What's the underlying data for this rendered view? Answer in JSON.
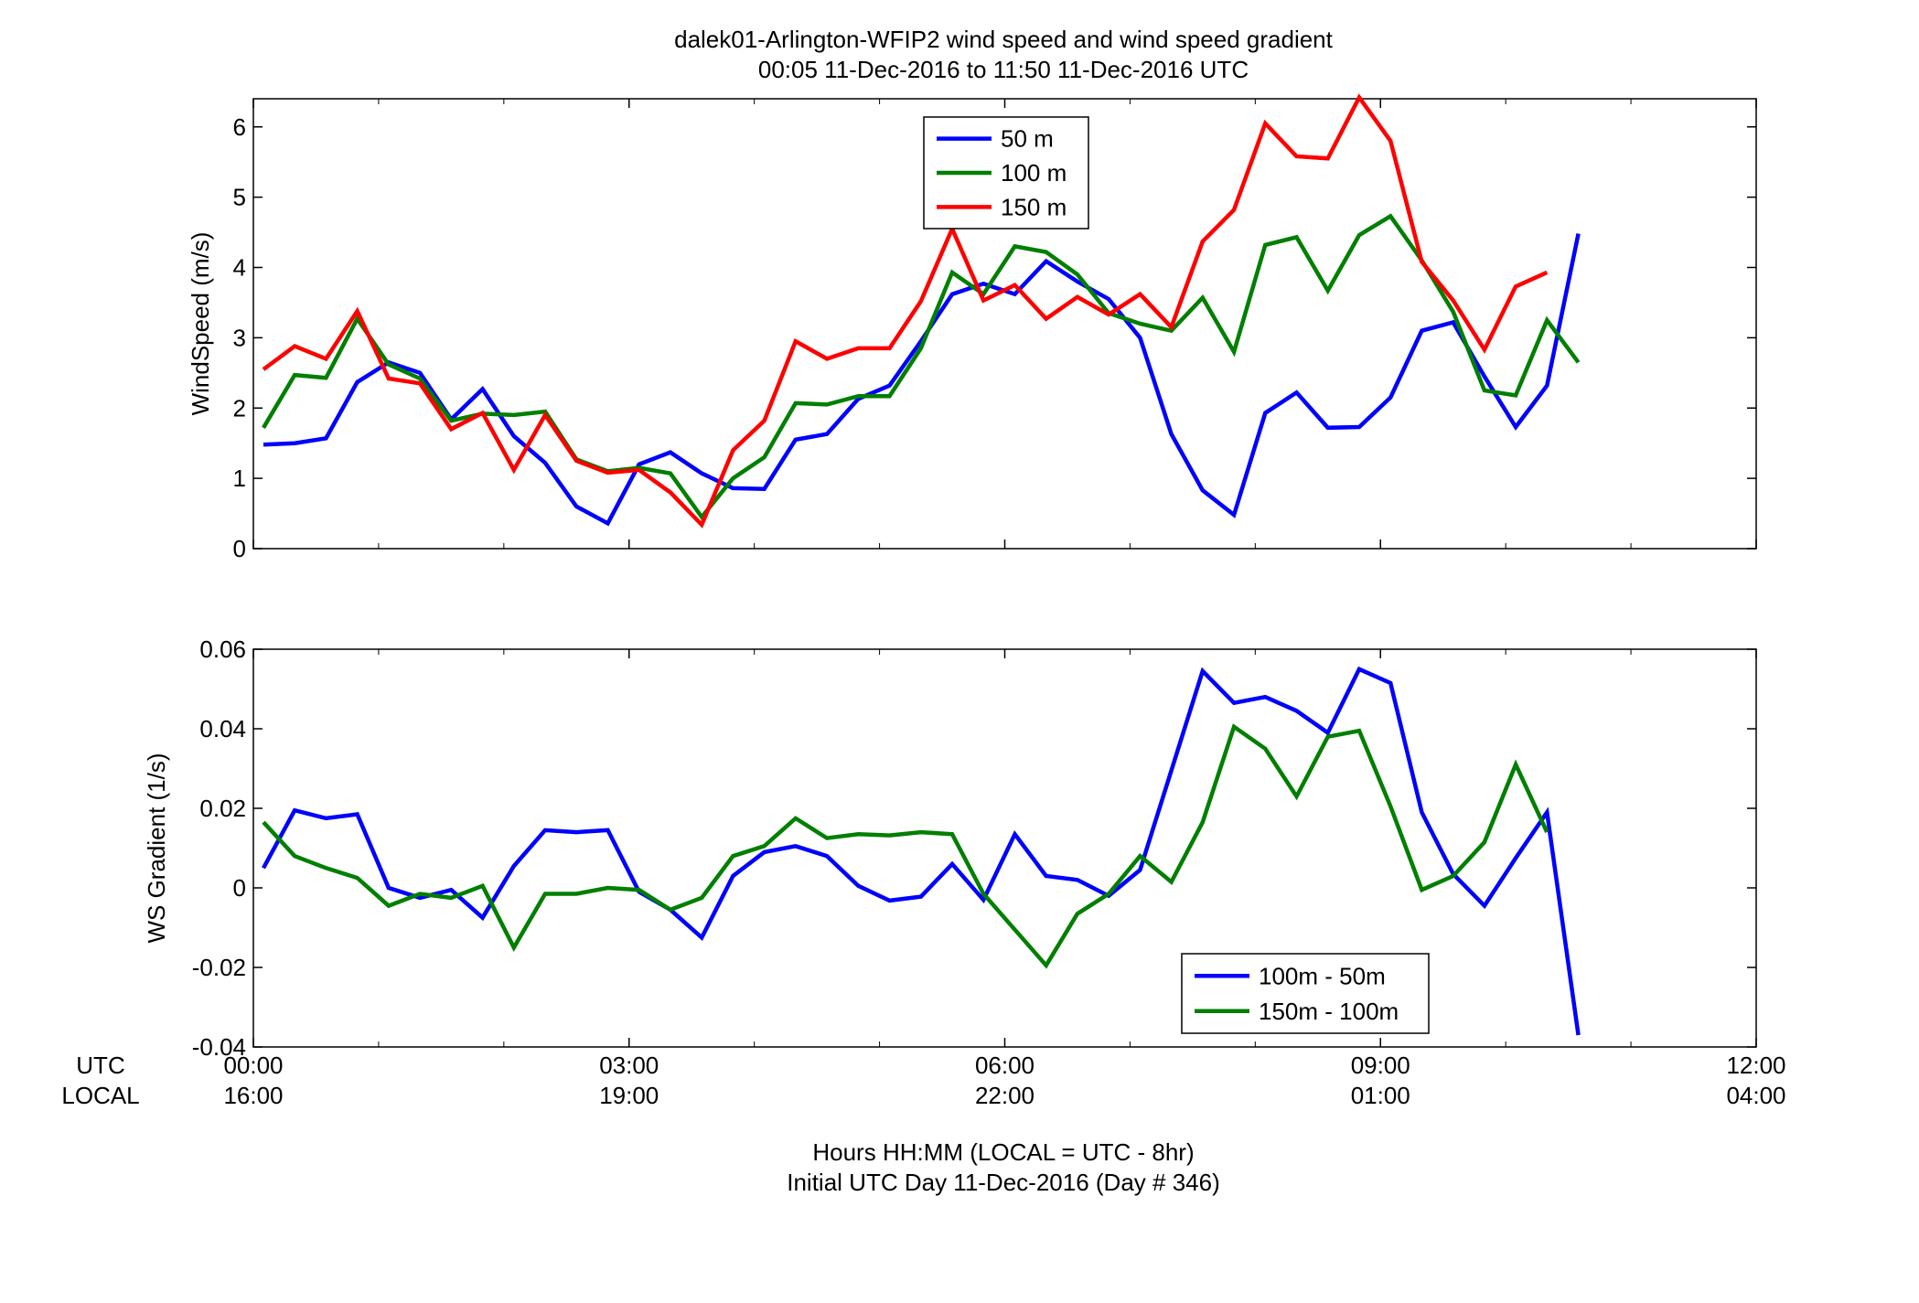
{
  "title": {
    "line1": "dalek01-Arlington-WFIP2  wind speed and wind speed gradient",
    "line2": "00:05 11-Dec-2016 to 11:50 11-Dec-2016  UTC"
  },
  "xaxis": {
    "row_label_utc": "UTC",
    "row_label_local": "LOCAL",
    "ticks_utc": [
      "00:00",
      "03:00",
      "06:00",
      "09:00",
      "12:00"
    ],
    "ticks_local": [
      "16:00",
      "19:00",
      "22:00",
      "01:00",
      "04:00"
    ],
    "label_line1": "Hours HH:MM  (LOCAL = UTC - 8hr)",
    "label_line2": "Initial UTC Day 11-Dec-2016 (Day # 346)"
  },
  "chart_data": [
    {
      "type": "line",
      "ylabel": "WindSpeed (m/s)",
      "xlim": [
        0,
        12
      ],
      "ylim": [
        0,
        6.4
      ],
      "yticks": [
        "0",
        "1",
        "2",
        "3",
        "4",
        "5",
        "6"
      ],
      "ytick_values": [
        0,
        1,
        2,
        3,
        4,
        5,
        6
      ],
      "legend_position": "top-center",
      "series": [
        {
          "name": "50 m",
          "color": "#0000ff",
          "x": [
            0.08,
            0.33,
            0.58,
            0.83,
            1.08,
            1.33,
            1.58,
            1.83,
            2.08,
            2.33,
            2.58,
            2.83,
            3.08,
            3.33,
            3.58,
            3.83,
            4.08,
            4.33,
            4.58,
            4.83,
            5.08,
            5.33,
            5.58,
            5.83,
            6.08,
            6.33,
            6.58,
            6.83,
            7.08,
            7.33,
            7.58,
            7.83,
            8.08,
            8.33,
            8.58,
            8.83,
            9.08,
            9.33,
            9.58,
            9.83,
            10.08,
            10.33,
            10.58
          ],
          "values": [
            1.48,
            1.5,
            1.57,
            2.37,
            2.65,
            2.5,
            1.84,
            2.27,
            1.6,
            1.22,
            0.6,
            0.36,
            1.2,
            1.37,
            1.07,
            0.86,
            0.85,
            1.55,
            1.63,
            2.13,
            2.32,
            2.95,
            3.62,
            3.77,
            3.62,
            4.09,
            3.8,
            3.55,
            3.0,
            1.63,
            0.83,
            0.48,
            1.93,
            2.22,
            1.72,
            1.73,
            2.15,
            3.1,
            3.22,
            2.45,
            1.73,
            2.32,
            4.48
          ]
        },
        {
          "name": "100 m",
          "color": "#007f00",
          "x": [
            0.08,
            0.33,
            0.58,
            0.83,
            1.08,
            1.33,
            1.58,
            1.83,
            2.08,
            2.33,
            2.58,
            2.83,
            3.08,
            3.33,
            3.58,
            3.83,
            4.08,
            4.33,
            4.58,
            4.83,
            5.08,
            5.33,
            5.58,
            5.83,
            6.08,
            6.33,
            6.58,
            6.83,
            7.08,
            7.33,
            7.58,
            7.83,
            8.08,
            8.33,
            8.58,
            8.83,
            9.08,
            9.33,
            9.58,
            9.83,
            10.08,
            10.33,
            10.58
          ],
          "values": [
            1.72,
            2.47,
            2.43,
            3.27,
            2.62,
            2.42,
            1.82,
            1.92,
            1.9,
            1.95,
            1.27,
            1.1,
            1.15,
            1.07,
            0.45,
            1.0,
            1.3,
            2.07,
            2.05,
            2.17,
            2.17,
            2.85,
            3.93,
            3.62,
            4.3,
            4.22,
            3.9,
            3.35,
            3.2,
            3.1,
            3.57,
            2.8,
            4.32,
            4.43,
            3.67,
            4.46,
            4.73,
            4.1,
            3.37,
            2.25,
            2.18,
            3.25,
            2.65
          ]
        },
        {
          "name": "150 m",
          "color": "#ff0000",
          "x": [
            0.08,
            0.33,
            0.58,
            0.83,
            1.08,
            1.33,
            1.58,
            1.83,
            2.08,
            2.33,
            2.58,
            2.83,
            3.08,
            3.33,
            3.58,
            3.83,
            4.08,
            4.33,
            4.58,
            4.83,
            5.08,
            5.33,
            5.58,
            5.83,
            6.08,
            6.33,
            6.58,
            6.83,
            7.08,
            7.33,
            7.58,
            7.83,
            8.08,
            8.33,
            8.58,
            8.83,
            9.08,
            9.33,
            9.58,
            9.83,
            10.08,
            10.33
          ],
          "values": [
            2.55,
            2.88,
            2.7,
            3.38,
            2.42,
            2.35,
            1.7,
            1.93,
            1.12,
            1.9,
            1.25,
            1.08,
            1.12,
            0.8,
            0.34,
            1.4,
            1.82,
            2.95,
            2.7,
            2.85,
            2.85,
            3.52,
            4.55,
            3.53,
            3.75,
            3.27,
            3.58,
            3.33,
            3.62,
            3.15,
            4.37,
            4.82,
            6.05,
            5.58,
            5.55,
            6.42,
            5.8,
            4.08,
            3.53,
            2.83,
            3.73,
            3.93
          ]
        }
      ]
    },
    {
      "type": "line",
      "ylabel": "WS Gradient (1/s)",
      "xlim": [
        0,
        12
      ],
      "ylim": [
        -0.04,
        0.06
      ],
      "yticks": [
        "-0.04",
        "-0.02",
        "0",
        "0.02",
        "0.04",
        "0.06"
      ],
      "ytick_values": [
        -0.04,
        -0.02,
        0,
        0.02,
        0.04,
        0.06
      ],
      "legend_position": "bottom-right",
      "series": [
        {
          "name": "100m - 50m",
          "color": "#0000ff",
          "x": [
            0.08,
            0.33,
            0.58,
            0.83,
            1.08,
            1.33,
            1.58,
            1.83,
            2.08,
            2.33,
            2.58,
            2.83,
            3.08,
            3.33,
            3.58,
            3.83,
            4.08,
            4.33,
            4.58,
            4.83,
            5.08,
            5.33,
            5.58,
            5.83,
            6.08,
            6.33,
            6.58,
            6.83,
            7.08,
            7.33,
            7.58,
            7.83,
            8.08,
            8.33,
            8.58,
            8.83,
            9.08,
            9.33,
            9.58,
            9.83,
            10.08,
            10.33,
            10.58
          ],
          "values": [
            0.005,
            0.0195,
            0.0175,
            0.0185,
            0.0,
            -0.0025,
            -0.0005,
            -0.0075,
            0.0055,
            0.0145,
            0.014,
            0.0145,
            -0.001,
            -0.0055,
            -0.0125,
            0.003,
            0.009,
            0.0105,
            0.008,
            0.0005,
            -0.0032,
            -0.0022,
            0.006,
            -0.003,
            0.0135,
            0.003,
            0.002,
            -0.002,
            0.0045,
            0.0295,
            0.0545,
            0.0465,
            0.048,
            0.0445,
            0.039,
            0.055,
            0.0515,
            0.019,
            0.0035,
            -0.0045,
            0.0075,
            0.019,
            -0.037
          ]
        },
        {
          "name": "150m - 100m",
          "color": "#007f00",
          "x": [
            0.08,
            0.33,
            0.58,
            0.83,
            1.08,
            1.33,
            1.58,
            1.83,
            2.08,
            2.33,
            2.58,
            2.83,
            3.08,
            3.33,
            3.58,
            3.83,
            4.08,
            4.33,
            4.58,
            4.83,
            5.08,
            5.33,
            5.58,
            5.83,
            6.08,
            6.33,
            6.58,
            6.83,
            7.08,
            7.33,
            7.58,
            7.83,
            8.08,
            8.33,
            8.58,
            8.83,
            9.08,
            9.33,
            9.58,
            9.83,
            10.08,
            10.33
          ],
          "values": [
            0.0165,
            0.008,
            0.005,
            0.0025,
            -0.0045,
            -0.0015,
            -0.0025,
            0.0005,
            -0.015,
            -0.0015,
            -0.0015,
            0.0,
            -0.0005,
            -0.0055,
            -0.0025,
            0.008,
            0.0105,
            0.0175,
            0.0125,
            0.0135,
            0.0132,
            0.014,
            0.0135,
            -0.0015,
            -0.0105,
            -0.0195,
            -0.0065,
            -0.0015,
            0.008,
            0.0015,
            0.0165,
            0.0405,
            0.035,
            0.023,
            0.038,
            0.0395,
            0.0205,
            -0.0005,
            0.003,
            0.0115,
            0.031,
            0.014
          ]
        }
      ]
    }
  ]
}
